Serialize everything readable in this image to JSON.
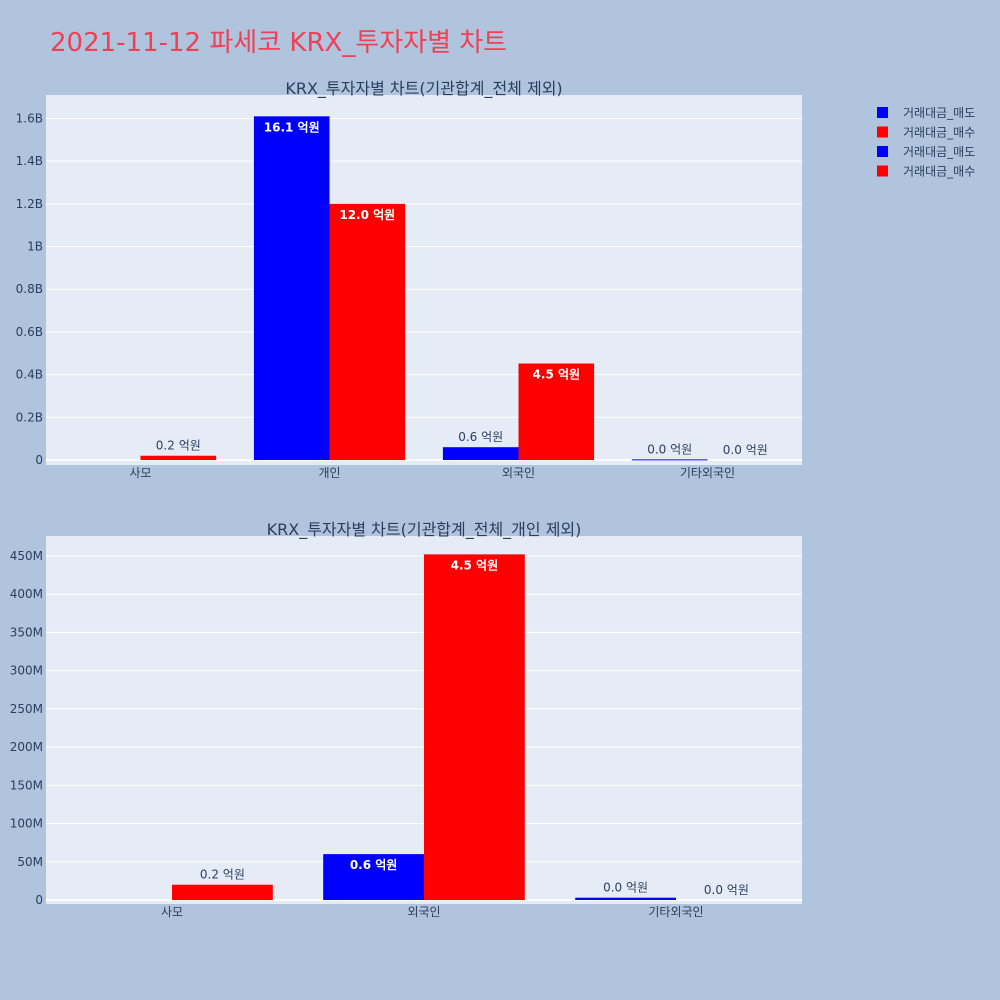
{
  "title": "2021-11-12 파세코 KRX_투자자별 차트",
  "legend": [
    {
      "label": "거래대금_매도",
      "color": "#0000ff"
    },
    {
      "label": "거래대금_매수",
      "color": "#ff0000"
    },
    {
      "label": "거래대금_매도",
      "color": "#0000ff"
    },
    {
      "label": "거래대금_매수",
      "color": "#ff0000"
    }
  ],
  "chart_data": [
    {
      "type": "bar",
      "title": "KRX_투자자별 차트(기관합계_전체 제외)",
      "categories": [
        "사모",
        "개인",
        "외국인",
        "기타외국인"
      ],
      "series": [
        {
          "name": "거래대금_매도",
          "color": "#0000ff",
          "values": [
            0,
            1610000000,
            60000000,
            3000000
          ],
          "labels": [
            "",
            "16.1 억원",
            "0.6 억원",
            "0.0 억원"
          ]
        },
        {
          "name": "거래대금_매수",
          "color": "#ff0000",
          "values": [
            20000000,
            1200000000,
            452000000,
            0
          ],
          "labels": [
            "0.2 억원",
            "12.0 억원",
            "4.5 억원",
            "0.0 억원"
          ]
        }
      ],
      "ylim": [
        0,
        1710000000
      ],
      "yticks": [
        0,
        200000000,
        400000000,
        600000000,
        800000000,
        1000000000,
        1200000000,
        1400000000,
        1600000000
      ],
      "yticklabels": [
        "0",
        "0.2B",
        "0.4B",
        "0.6B",
        "0.8B",
        "1B",
        "1.2B",
        "1.4B",
        "1.6B"
      ],
      "grid": true
    },
    {
      "type": "bar",
      "title": "KRX_투자자별 차트(기관합계_전체_개인 제외)",
      "categories": [
        "사모",
        "외국인",
        "기타외국인"
      ],
      "series": [
        {
          "name": "거래대금_매도",
          "color": "#0000ff",
          "values": [
            0,
            60000000,
            3000000
          ],
          "labels": [
            "",
            "0.6 억원",
            "0.0 억원"
          ]
        },
        {
          "name": "거래대금_매수",
          "color": "#ff0000",
          "values": [
            20000000,
            452000000,
            0
          ],
          "labels": [
            "0.2 억원",
            "4.5 억원",
            "0.0 억원"
          ]
        }
      ],
      "ylim": [
        0,
        476000000
      ],
      "yticks": [
        0,
        50000000,
        100000000,
        150000000,
        200000000,
        250000000,
        300000000,
        350000000,
        400000000,
        450000000
      ],
      "yticklabels": [
        "0",
        "50M",
        "100M",
        "150M",
        "200M",
        "250M",
        "300M",
        "350M",
        "400M",
        "450M"
      ],
      "grid": true
    }
  ]
}
